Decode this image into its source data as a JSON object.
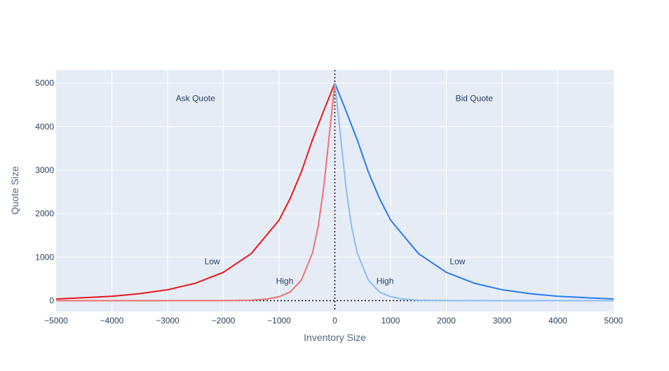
{
  "chart_data": {
    "type": "line",
    "xlabel": "Inventory Size",
    "ylabel": "Quote Size",
    "xlim": [
      -5000,
      5000
    ],
    "ylim": [
      -250,
      5300
    ],
    "x_ticks": [
      -5000,
      -4000,
      -3000,
      -2000,
      -1000,
      0,
      1000,
      2000,
      3000,
      4000,
      5000
    ],
    "x_tick_labels": [
      "−5000",
      "−4000",
      "−3000",
      "−2000",
      "−1000",
      "0",
      "1000",
      "2000",
      "3000",
      "4000",
      "5000"
    ],
    "y_ticks": [
      0,
      1000,
      2000,
      3000,
      4000,
      5000
    ],
    "y_tick_labels": [
      "0",
      "1000",
      "2000",
      "3000",
      "4000",
      "5000"
    ],
    "grid": true,
    "background": "#e5ecf6",
    "series": [
      {
        "name": "",
        "color": "#e8191b",
        "x": [
          -5000,
          -4500,
          -4000,
          -3500,
          -3000,
          -2500,
          -2000,
          -1500,
          -1000,
          -800,
          -600,
          -400,
          -200,
          0
        ],
        "values": [
          37,
          67,
          100,
          160,
          250,
          400,
          650,
          1080,
          1850,
          2350,
          2960,
          3700,
          4360,
          5000
        ]
      },
      {
        "name": "",
        "color": "#f07070",
        "x": [
          -5000,
          -3000,
          -2000,
          -1500,
          -1200,
          -1000,
          -800,
          -600,
          -400,
          -300,
          -200,
          -100,
          0
        ],
        "values": [
          0,
          0,
          2,
          10,
          40,
          90,
          200,
          470,
          1100,
          1700,
          2600,
          3800,
          5000
        ]
      },
      {
        "name": "",
        "color": "#2b7bf2",
        "x": [
          0,
          200,
          400,
          600,
          800,
          1000,
          1500,
          2000,
          2500,
          3000,
          3500,
          4000,
          4500,
          5000
        ],
        "values": [
          5000,
          4360,
          3700,
          2960,
          2350,
          1850,
          1080,
          650,
          400,
          250,
          160,
          100,
          67,
          37
        ]
      },
      {
        "name": "",
        "color": "#8cbcf5",
        "x": [
          0,
          100,
          200,
          300,
          400,
          600,
          800,
          1000,
          1200,
          1500,
          2000,
          3000,
          5000
        ],
        "values": [
          5000,
          3800,
          2600,
          1700,
          1100,
          470,
          200,
          90,
          40,
          10,
          2,
          0,
          0
        ]
      }
    ],
    "annotations": [
      {
        "text": "Ask Quote",
        "x": -2500,
        "y": 4650
      },
      {
        "text": "Bid Quote",
        "x": 2500,
        "y": 4650
      },
      {
        "text": "Low",
        "x": -2200,
        "y": 900
      },
      {
        "text": "High",
        "x": -900,
        "y": 450
      },
      {
        "text": "High",
        "x": 900,
        "y": 450
      },
      {
        "text": "Low",
        "x": 2200,
        "y": 900
      }
    ],
    "reference_lines": [
      {
        "orientation": "vertical",
        "value": 0,
        "style": "dotted"
      },
      {
        "orientation": "horizontal",
        "value": 0,
        "style": "dotted"
      }
    ]
  }
}
